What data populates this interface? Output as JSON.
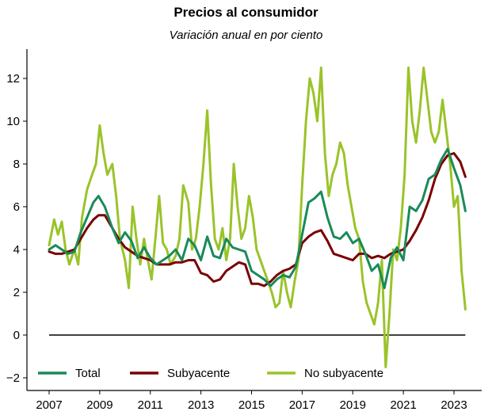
{
  "chart_data": {
    "type": "line",
    "title": "Precios al consumidor",
    "subtitle": "Variación anual en por ciento",
    "xlabel": "",
    "ylabel": "",
    "xlim": [
      2006.6,
      2023.95
    ],
    "ylim": [
      -2.6,
      13.5
    ],
    "x_ticks": [
      2007,
      2009,
      2011,
      2013,
      2015,
      2017,
      2019,
      2021,
      2023
    ],
    "y_ticks": [
      -2,
      0,
      2,
      4,
      6,
      8,
      10,
      12
    ],
    "zero_line": 0,
    "grid": false,
    "legend_position": "bottom",
    "colors": {
      "Total": "#1a8a5a",
      "Subyacente": "#7a0000",
      "No subyacente": "#9ac32a",
      "zero_line": "#000000"
    },
    "series": [
      {
        "name": "Total",
        "x": [
          2007.0,
          2007.25,
          2007.5,
          2007.75,
          2008.0,
          2008.25,
          2008.5,
          2008.75,
          2008.95,
          2009.2,
          2009.5,
          2009.75,
          2010.0,
          2010.25,
          2010.5,
          2010.75,
          2011.0,
          2011.25,
          2011.5,
          2011.75,
          2012.0,
          2012.25,
          2012.5,
          2012.75,
          2013.0,
          2013.25,
          2013.5,
          2013.75,
          2014.0,
          2014.25,
          2014.5,
          2014.75,
          2015.0,
          2015.25,
          2015.5,
          2015.75,
          2016.0,
          2016.25,
          2016.5,
          2016.75,
          2017.0,
          2017.25,
          2017.5,
          2017.75,
          2018.0,
          2018.25,
          2018.5,
          2018.75,
          2019.0,
          2019.25,
          2019.5,
          2019.75,
          2020.0,
          2020.25,
          2020.5,
          2020.75,
          2021.0,
          2021.25,
          2021.5,
          2021.75,
          2022.0,
          2022.25,
          2022.5,
          2022.75,
          2023.0,
          2023.25,
          2023.45
        ],
        "values": [
          4.0,
          4.2,
          4.0,
          3.8,
          3.9,
          4.8,
          5.5,
          6.2,
          6.5,
          6.0,
          5.0,
          4.3,
          4.8,
          4.4,
          3.6,
          4.1,
          3.6,
          3.3,
          3.5,
          3.7,
          4.0,
          3.5,
          4.5,
          4.2,
          3.5,
          4.6,
          3.7,
          3.6,
          4.5,
          4.1,
          4.0,
          3.9,
          3.0,
          2.8,
          2.6,
          2.3,
          2.6,
          2.8,
          2.7,
          3.2,
          4.7,
          6.2,
          6.4,
          6.7,
          5.5,
          4.6,
          4.5,
          4.8,
          4.3,
          4.5,
          3.8,
          3.0,
          3.3,
          2.2,
          3.6,
          4.1,
          3.5,
          6.0,
          5.8,
          6.3,
          7.3,
          7.5,
          8.2,
          8.7,
          7.8,
          7.0,
          5.8
        ]
      },
      {
        "name": "Subyacente",
        "x": [
          2007.0,
          2007.25,
          2007.5,
          2007.75,
          2008.0,
          2008.25,
          2008.5,
          2008.75,
          2008.95,
          2009.2,
          2009.5,
          2009.75,
          2010.0,
          2010.25,
          2010.5,
          2010.75,
          2011.0,
          2011.25,
          2011.5,
          2011.75,
          2012.0,
          2012.25,
          2012.5,
          2012.75,
          2013.0,
          2013.25,
          2013.5,
          2013.75,
          2014.0,
          2014.25,
          2014.5,
          2014.75,
          2015.0,
          2015.25,
          2015.5,
          2015.75,
          2016.0,
          2016.25,
          2016.5,
          2016.75,
          2017.0,
          2017.25,
          2017.5,
          2017.75,
          2018.0,
          2018.25,
          2018.5,
          2018.75,
          2019.0,
          2019.25,
          2019.5,
          2019.75,
          2020.0,
          2020.25,
          2020.5,
          2020.75,
          2021.0,
          2021.25,
          2021.5,
          2021.75,
          2022.0,
          2022.25,
          2022.5,
          2022.75,
          2023.0,
          2023.25,
          2023.45
        ],
        "values": [
          3.9,
          3.8,
          3.8,
          3.9,
          4.0,
          4.5,
          5.0,
          5.4,
          5.6,
          5.6,
          5.0,
          4.5,
          4.1,
          3.9,
          3.7,
          3.6,
          3.5,
          3.3,
          3.3,
          3.3,
          3.4,
          3.4,
          3.5,
          3.5,
          2.9,
          2.8,
          2.5,
          2.6,
          3.0,
          3.2,
          3.4,
          3.3,
          2.4,
          2.4,
          2.3,
          2.5,
          2.8,
          3.0,
          3.1,
          3.3,
          4.3,
          4.6,
          4.8,
          4.9,
          4.4,
          3.8,
          3.7,
          3.6,
          3.5,
          3.8,
          3.8,
          3.6,
          3.7,
          3.6,
          3.8,
          3.9,
          4.0,
          4.4,
          4.9,
          5.5,
          6.3,
          7.3,
          8.0,
          8.4,
          8.5,
          8.1,
          7.4
        ]
      },
      {
        "name": "No subyacente",
        "x": [
          2007.0,
          2007.2,
          2007.35,
          2007.5,
          2007.65,
          2007.8,
          2008.0,
          2008.15,
          2008.3,
          2008.5,
          2008.7,
          2008.85,
          2009.0,
          2009.15,
          2009.3,
          2009.5,
          2009.65,
          2009.8,
          2010.0,
          2010.15,
          2010.3,
          2010.45,
          2010.6,
          2010.75,
          2010.9,
          2011.05,
          2011.2,
          2011.35,
          2011.5,
          2011.65,
          2011.8,
          2012.0,
          2012.15,
          2012.3,
          2012.5,
          2012.65,
          2012.8,
          2012.95,
          2013.1,
          2013.25,
          2013.4,
          2013.55,
          2013.7,
          2013.85,
          2014.0,
          2014.15,
          2014.3,
          2014.45,
          2014.6,
          2014.75,
          2014.9,
          2015.05,
          2015.2,
          2015.35,
          2015.5,
          2015.65,
          2015.8,
          2015.95,
          2016.1,
          2016.25,
          2016.4,
          2016.55,
          2016.7,
          2016.85,
          2017.0,
          2017.15,
          2017.3,
          2017.45,
          2017.6,
          2017.75,
          2017.9,
          2018.05,
          2018.2,
          2018.35,
          2018.5,
          2018.65,
          2018.8,
          2018.95,
          2019.1,
          2019.25,
          2019.4,
          2019.55,
          2019.7,
          2019.85,
          2020.0,
          2020.15,
          2020.3,
          2020.45,
          2020.6,
          2020.75,
          2020.9,
          2021.05,
          2021.2,
          2021.35,
          2021.5,
          2021.65,
          2021.8,
          2021.95,
          2022.1,
          2022.25,
          2022.4,
          2022.55,
          2022.7,
          2022.85,
          2023.0,
          2023.15,
          2023.3,
          2023.45
        ],
        "values": [
          4.2,
          5.4,
          4.7,
          5.3,
          4.0,
          3.3,
          4.0,
          3.3,
          5.5,
          6.8,
          7.5,
          8.0,
          9.8,
          8.5,
          7.5,
          8.0,
          6.5,
          4.5,
          3.5,
          2.2,
          6.0,
          4.5,
          3.3,
          4.5,
          3.5,
          2.6,
          4.5,
          6.5,
          4.3,
          4.0,
          3.3,
          3.7,
          4.5,
          7.0,
          6.2,
          4.0,
          4.5,
          6.0,
          8.0,
          10.5,
          7.0,
          4.5,
          4.0,
          5.0,
          3.5,
          4.5,
          8.0,
          6.0,
          4.5,
          5.0,
          6.5,
          5.5,
          4.0,
          3.5,
          3.0,
          2.5,
          2.0,
          1.3,
          1.5,
          3.0,
          2.0,
          1.3,
          2.5,
          3.5,
          7.0,
          10.0,
          12.0,
          11.3,
          10.0,
          12.5,
          8.5,
          6.5,
          7.5,
          8.0,
          9.0,
          8.5,
          7.0,
          6.0,
          5.0,
          4.5,
          2.5,
          1.5,
          1.0,
          0.5,
          1.5,
          3.5,
          -1.5,
          1.0,
          4.0,
          3.5,
          5.0,
          7.5,
          12.5,
          10.0,
          9.0,
          10.5,
          12.5,
          11.0,
          9.5,
          9.0,
          9.5,
          11.0,
          9.5,
          8.0,
          6.0,
          6.5,
          3.0,
          1.2
        ]
      }
    ]
  }
}
